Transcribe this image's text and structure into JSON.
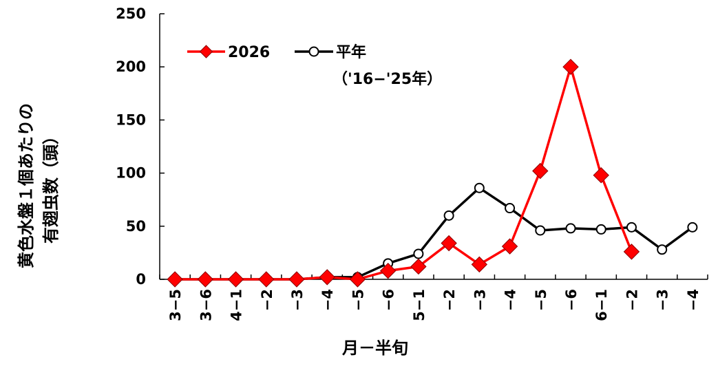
{
  "chart_data": {
    "type": "line",
    "xlabel": "月－半旬",
    "ylabel_lines": [
      "黄色水盤１個あたりの",
      "有翅虫数（頭）"
    ],
    "ylim": [
      0,
      250
    ],
    "yticks": [
      0,
      50,
      100,
      150,
      200,
      250
    ],
    "categories": [
      "3−5",
      "3−6",
      "4−1",
      "−2",
      "−3",
      "−4",
      "−5",
      "−6",
      "5−1",
      "−2",
      "−3",
      "−4",
      "−5",
      "−6",
      "6−1",
      "−2",
      "−3",
      "−4"
    ],
    "series": [
      {
        "name": "2026",
        "color": "#ff0000",
        "marker": "diamond",
        "values": [
          0,
          0,
          0,
          0,
          0,
          2,
          0,
          8,
          12,
          34,
          14,
          31,
          102,
          200,
          98,
          26,
          null,
          null
        ]
      },
      {
        "name": "平年",
        "note": "（'16−'25年）",
        "color": "#000000",
        "marker": "circle",
        "values": [
          0,
          0,
          0,
          0,
          0,
          2,
          2,
          15,
          24,
          60,
          86,
          67,
          46,
          48,
          47,
          49,
          28,
          49
        ]
      }
    ],
    "grid": false,
    "legend_position": "top-left"
  }
}
